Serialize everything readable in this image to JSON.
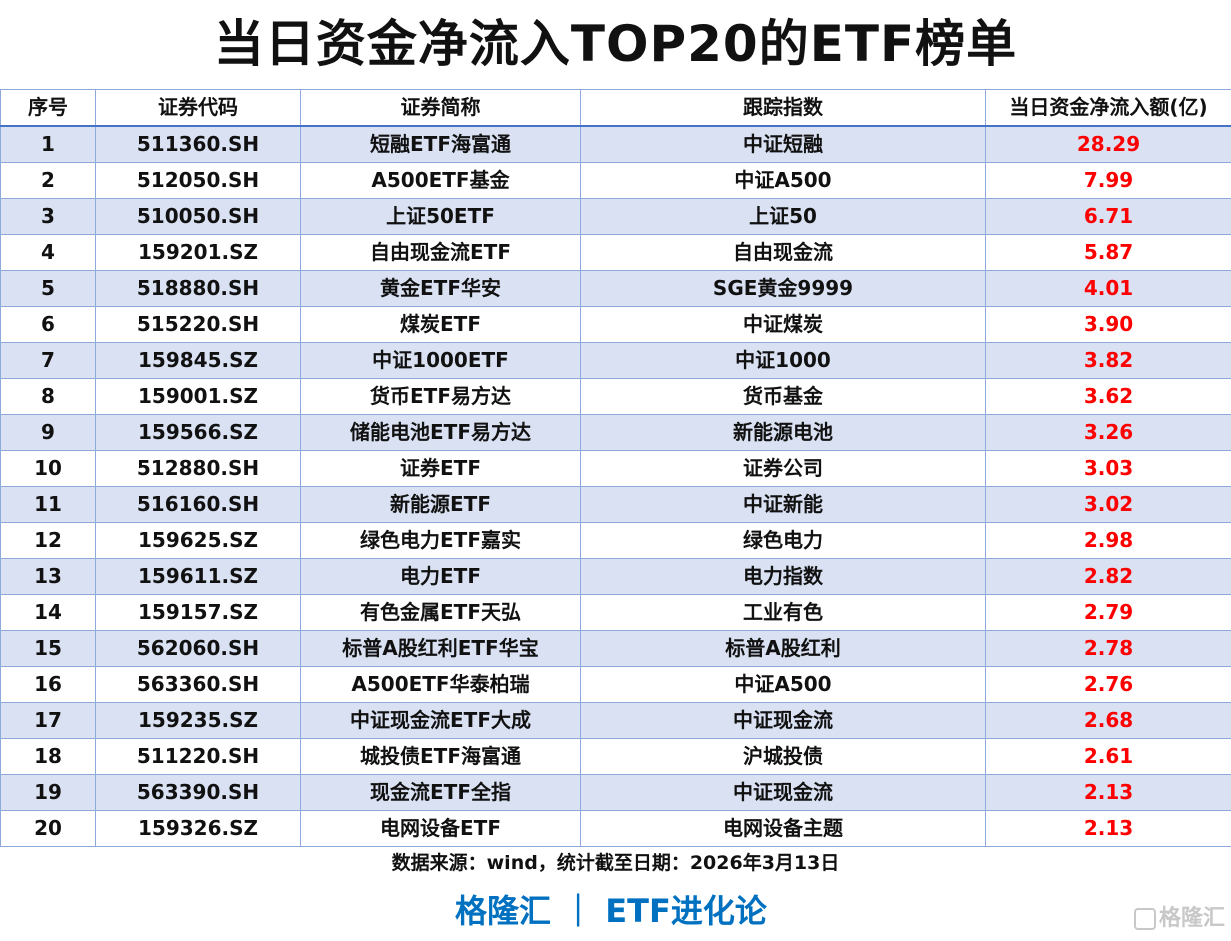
{
  "title": "当日资金净流入TOP20的ETF榜单",
  "colors": {
    "row_band": "#d9e1f2",
    "value": "#ff0000",
    "brand": "#0070c0",
    "border": "#8ea9db"
  },
  "columns": [
    "序号",
    "证券代码",
    "证券简称",
    "跟踪指数",
    "当日资金净流入额(亿)"
  ],
  "rows": [
    [
      "1",
      "511360.SH",
      "短融ETF海富通",
      "中证短融",
      "28.29"
    ],
    [
      "2",
      "512050.SH",
      "A500ETF基金",
      "中证A500",
      "7.99"
    ],
    [
      "3",
      "510050.SH",
      "上证50ETF",
      "上证50",
      "6.71"
    ],
    [
      "4",
      "159201.SZ",
      "自由现金流ETF",
      "自由现金流",
      "5.87"
    ],
    [
      "5",
      "518880.SH",
      "黄金ETF华安",
      "SGE黄金9999",
      "4.01"
    ],
    [
      "6",
      "515220.SH",
      "煤炭ETF",
      "中证煤炭",
      "3.90"
    ],
    [
      "7",
      "159845.SZ",
      "中证1000ETF",
      "中证1000",
      "3.82"
    ],
    [
      "8",
      "159001.SZ",
      "货币ETF易方达",
      "货币基金",
      "3.62"
    ],
    [
      "9",
      "159566.SZ",
      "储能电池ETF易方达",
      "新能源电池",
      "3.26"
    ],
    [
      "10",
      "512880.SH",
      "证券ETF",
      "证券公司",
      "3.03"
    ],
    [
      "11",
      "516160.SH",
      "新能源ETF",
      "中证新能",
      "3.02"
    ],
    [
      "12",
      "159625.SZ",
      "绿色电力ETF嘉实",
      "绿色电力",
      "2.98"
    ],
    [
      "13",
      "159611.SZ",
      "电力ETF",
      "电力指数",
      "2.82"
    ],
    [
      "14",
      "159157.SZ",
      "有色金属ETF天弘",
      "工业有色",
      "2.79"
    ],
    [
      "15",
      "562060.SH",
      "标普A股红利ETF华宝",
      "标普A股红利",
      "2.78"
    ],
    [
      "16",
      "563360.SH",
      "A500ETF华泰柏瑞",
      "中证A500",
      "2.76"
    ],
    [
      "17",
      "159235.SZ",
      "中证现金流ETF大成",
      "中证现金流",
      "2.68"
    ],
    [
      "18",
      "511220.SH",
      "城投债ETF海富通",
      "沪城投债",
      "2.61"
    ],
    [
      "19",
      "563390.SH",
      "现金流ETF全指",
      "中证现金流",
      "2.13"
    ],
    [
      "20",
      "159326.SZ",
      "电网设备ETF",
      "电网设备主题",
      "2.13"
    ]
  ],
  "source": "数据来源：wind，统计截至日期：2026年3月13日",
  "brand": "格隆汇 ｜ ETF进化论",
  "watermark": "格隆汇"
}
